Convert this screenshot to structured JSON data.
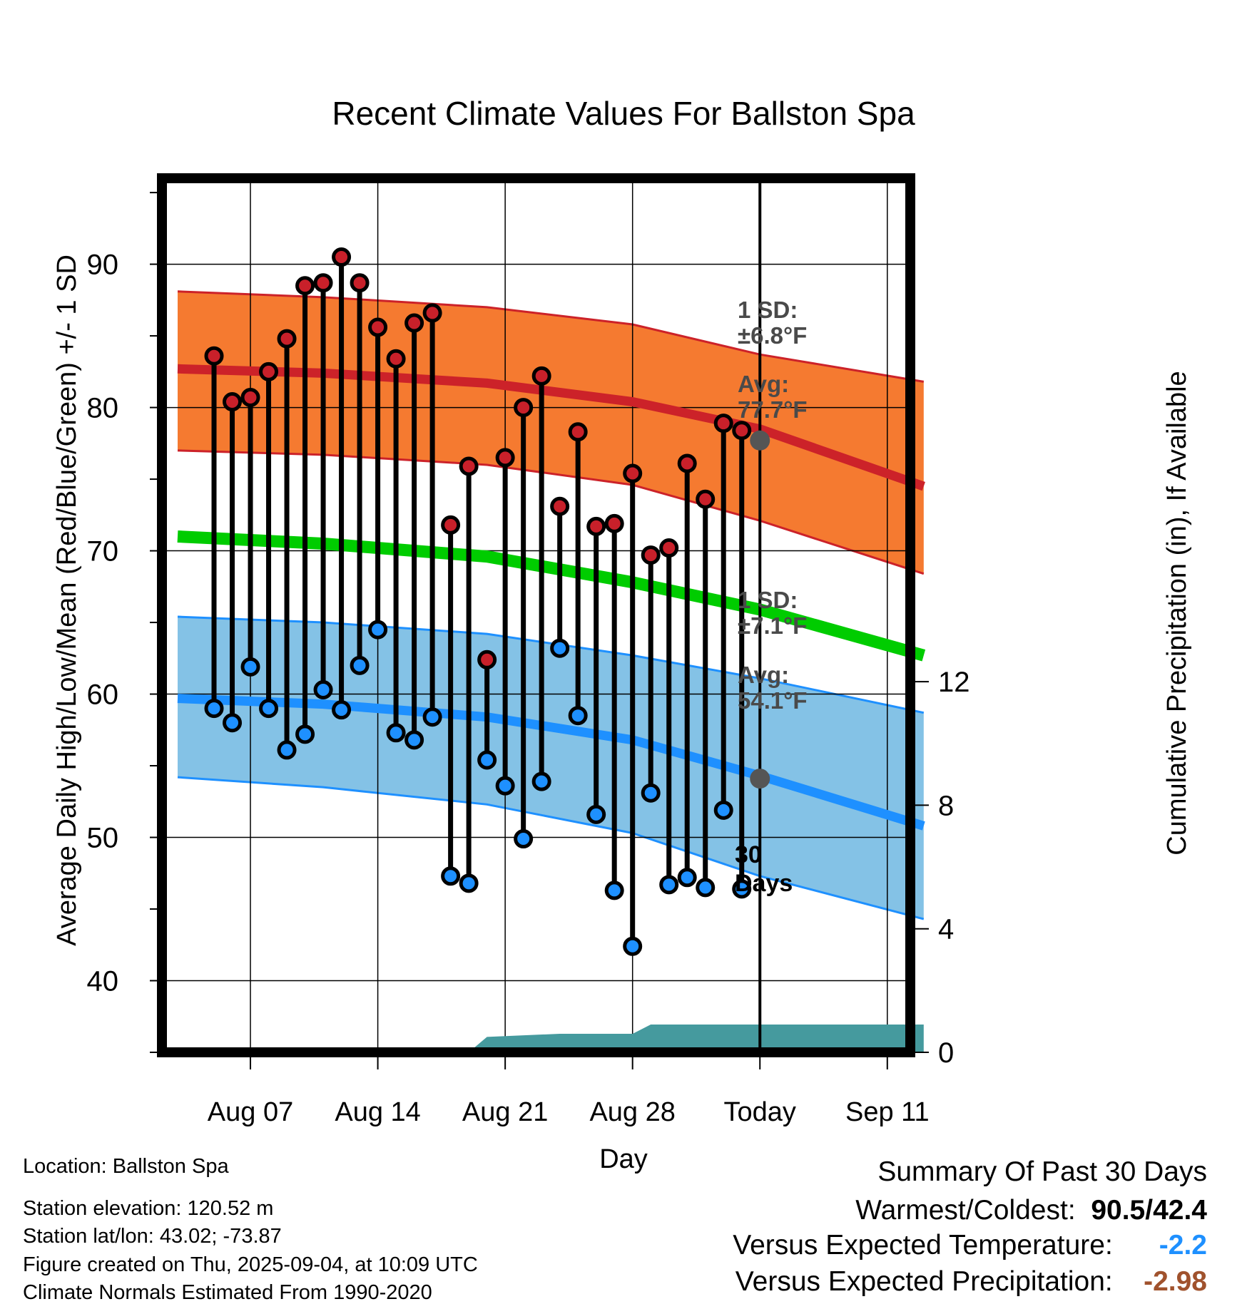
{
  "chart_data": {
    "type": "line",
    "title": "Recent Climate Values For Ballston Spa",
    "xlabel": "Day",
    "ylabel": "Average Daily High/Low/Mean (Red/Blue/Green) +/- 1 SD",
    "ylabel_right": "Cumulative Precipitation (in), If Available",
    "start_date": "2025-08-03",
    "xlim": [
      "2025-08-03",
      "2025-09-13"
    ],
    "ylim": [
      35,
      96
    ],
    "ylim_right": [
      0,
      28.3
    ],
    "grid": true,
    "x_ticks": [
      {
        "date": "2025-08-07",
        "label": "Aug 07"
      },
      {
        "date": "2025-08-14",
        "label": "Aug 14"
      },
      {
        "date": "2025-08-21",
        "label": "Aug 21"
      },
      {
        "date": "2025-08-28",
        "label": "Aug 28"
      },
      {
        "date": "2025-09-04",
        "label": "Today"
      },
      {
        "date": "2025-09-11",
        "label": "Sep 11"
      }
    ],
    "y_ticks": [
      "40",
      "50",
      "60",
      "70",
      "80",
      "90"
    ],
    "y_ticks_right": [
      "0",
      "4",
      "8",
      "12"
    ],
    "dates": [
      "2025-08-05",
      "2025-08-06",
      "2025-08-07",
      "2025-08-08",
      "2025-08-09",
      "2025-08-10",
      "2025-08-11",
      "2025-08-12",
      "2025-08-13",
      "2025-08-14",
      "2025-08-15",
      "2025-08-16",
      "2025-08-17",
      "2025-08-18",
      "2025-08-19",
      "2025-08-20",
      "2025-08-21",
      "2025-08-22",
      "2025-08-23",
      "2025-08-24",
      "2025-08-25",
      "2025-08-26",
      "2025-08-27",
      "2025-08-28",
      "2025-08-29",
      "2025-08-30",
      "2025-08-31",
      "2025-09-01",
      "2025-09-02",
      "2025-09-03"
    ],
    "series": [
      {
        "kind": "high",
        "color": "#c8202a",
        "values": [
          83.6,
          80.4,
          80.7,
          82.5,
          84.8,
          88.5,
          88.7,
          90.5,
          88.7,
          85.6,
          83.4,
          85.9,
          86.6,
          71.8,
          75.9,
          62.4,
          76.5,
          80.0,
          82.2,
          73.1,
          78.3,
          71.7,
          71.9,
          75.4,
          69.7,
          70.2,
          76.1,
          73.6,
          78.9,
          78.4
        ]
      },
      {
        "kind": "low",
        "color": "#1e90ff",
        "values": [
          59.0,
          58.0,
          61.9,
          59.0,
          56.1,
          57.2,
          60.3,
          58.9,
          62.0,
          64.5,
          57.3,
          56.8,
          58.4,
          47.3,
          46.8,
          55.4,
          53.6,
          49.9,
          53.9,
          63.2,
          58.5,
          51.6,
          46.3,
          42.4,
          53.1,
          46.7,
          47.2,
          46.5,
          51.9,
          46.4
        ]
      }
    ],
    "normals": {
      "avg_high": {
        "color": "#cc2229",
        "values": [
          82.7,
          82.4,
          81.7,
          80.4,
          78.5,
          74.5
        ]
      },
      "high_band_upper": {
        "values": [
          88.1,
          87.7,
          87.0,
          85.8,
          83.7,
          81.8
        ]
      },
      "high_band_lower": {
        "values": [
          77.0,
          76.7,
          76.0,
          74.6,
          72.1,
          68.4
        ]
      },
      "avg_mean": {
        "color": "#00cc00",
        "values": [
          71.0,
          70.5,
          69.6,
          67.8,
          65.9,
          62.7
        ]
      },
      "avg_low": {
        "color": "#1e90ff",
        "values": [
          59.7,
          59.3,
          58.4,
          56.8,
          54.3,
          50.8
        ]
      },
      "low_band_upper": {
        "values": [
          65.4,
          65.0,
          64.2,
          62.7,
          61.1,
          58.7
        ]
      },
      "low_band_lower": {
        "values": [
          54.2,
          53.5,
          52.3,
          50.3,
          47.3,
          44.3
        ]
      },
      "band_high_color": "#f57a30",
      "band_low_color": "#84c2e6",
      "band_dates": [
        "2025-08-03",
        "2025-08-11",
        "2025-08-20",
        "2025-08-28",
        "2025-09-04",
        "2025-09-13"
      ]
    },
    "precipitation": {
      "color": "#459a9e",
      "points": [
        [
          "2025-08-19",
          0.0
        ],
        [
          "2025-08-20",
          0.5
        ],
        [
          "2025-08-24",
          0.6
        ],
        [
          "2025-08-28",
          0.6
        ],
        [
          "2025-08-29",
          0.9
        ],
        [
          "2025-09-13",
          0.9
        ]
      ]
    },
    "markers": {
      "avg_high_today": 77.7,
      "avg_low_today": 54.1
    },
    "annotations": {
      "high_sd_label": "1 SD:",
      "high_sd_value": "±6.8°F",
      "high_avg_label": "Avg:",
      "high_avg_value": "77.7°F",
      "low_sd_label": "1 SD:",
      "low_sd_value": "±7.1°F",
      "low_avg_label": "Avg:",
      "low_avg_value": "54.1°F",
      "days_number": "30",
      "days_label": "Days"
    }
  },
  "info": {
    "location": "Location: Ballston Spa",
    "elevation": "Station elevation: 120.52 m",
    "latlon": "Station lat/lon: 43.02; -73.87",
    "created": "Figure created on Thu, 2025-09-04, at 10:09 UTC",
    "normals": "Climate Normals Estimated From 1990-2020"
  },
  "summary": {
    "title": "Summary Of Past 30 Days",
    "warmest_label": "Warmest/Coldest:",
    "warmest_value": "90.5/42.4",
    "temp_label": "Versus Expected Temperature:",
    "temp_value": "-2.2",
    "temp_color": "#1e90ff",
    "precip_label": "Versus Expected Precipitation:",
    "precip_value": "-2.98",
    "precip_color": "#a0522d"
  }
}
